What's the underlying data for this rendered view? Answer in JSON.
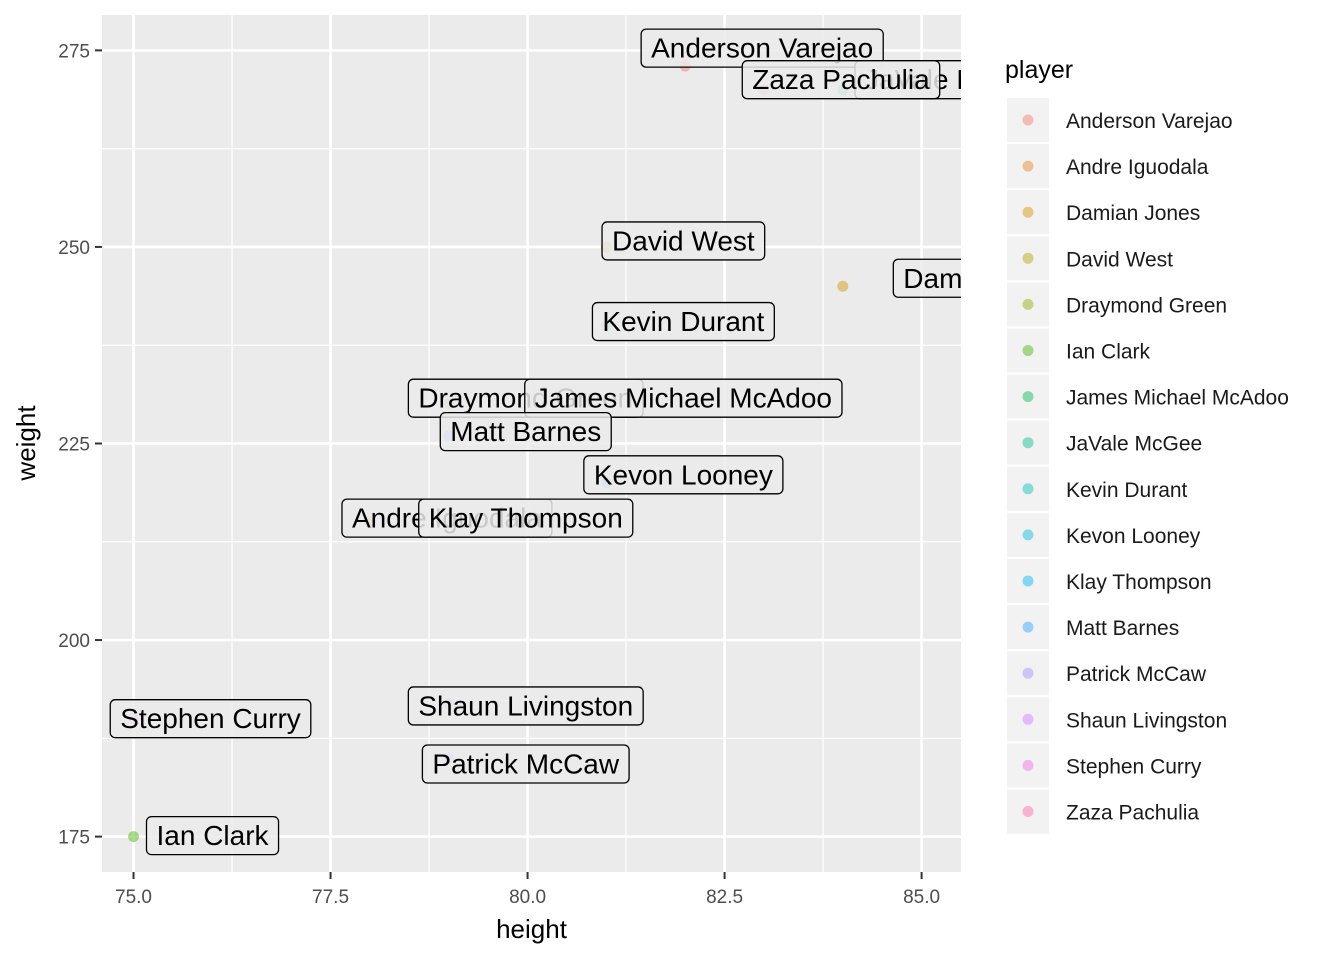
{
  "chart_data": {
    "type": "scatter",
    "xlabel": "height",
    "ylabel": "weight",
    "xlim": [
      74.6,
      85.5
    ],
    "ylim": [
      170.5,
      279.5
    ],
    "x_ticks": [
      75.0,
      77.5,
      80.0,
      82.5,
      85.0
    ],
    "x_tick_labels": [
      "75.0",
      "77.5",
      "80.0",
      "82.5",
      "85.0"
    ],
    "y_ticks": [
      175,
      200,
      225,
      250,
      275
    ],
    "y_tick_labels": [
      "175",
      "200",
      "225",
      "250",
      "275"
    ],
    "grid": true,
    "legend": {
      "title": "player",
      "position": "right"
    },
    "series": [
      {
        "name": "Anderson Varejao",
        "x": 82,
        "y": 273,
        "color": "#F8766D"
      },
      {
        "name": "Andre Iguodala",
        "x": 78,
        "y": 215,
        "color": "#E7851E"
      },
      {
        "name": "Damian Jones",
        "x": 84,
        "y": 245,
        "color": "#D09400"
      },
      {
        "name": "David West",
        "x": 81,
        "y": 250,
        "color": "#B2A100"
      },
      {
        "name": "Draymond Green",
        "x": 79,
        "y": 230,
        "color": "#89AC00"
      },
      {
        "name": "Ian Clark",
        "x": 75,
        "y": 175,
        "color": "#45B500"
      },
      {
        "name": "James Michael McAdoo",
        "x": 81,
        "y": 230,
        "color": "#00BC51"
      },
      {
        "name": "JaVale McGee",
        "x": 84,
        "y": 270,
        "color": "#00C087"
      },
      {
        "name": "Kevin Durant",
        "x": 81,
        "y": 240,
        "color": "#00C0B2"
      },
      {
        "name": "Kevon Looney",
        "x": 81,
        "y": 220,
        "color": "#00BCD6"
      },
      {
        "name": "Klay Thompson",
        "x": 79,
        "y": 215,
        "color": "#00B3F2"
      },
      {
        "name": "Matt Barnes",
        "x": 79,
        "y": 226,
        "color": "#29A3FF"
      },
      {
        "name": "Patrick McCaw",
        "x": 79,
        "y": 185,
        "color": "#9C8DFF"
      },
      {
        "name": "Shaun Livingston",
        "x": 79,
        "y": 192,
        "color": "#D277FF"
      },
      {
        "name": "Stephen Curry",
        "x": 75,
        "y": 190,
        "color": "#F166E8"
      },
      {
        "name": "Zaza Pachulia",
        "x": 83,
        "y": 270,
        "color": "#FF65AC"
      }
    ]
  }
}
